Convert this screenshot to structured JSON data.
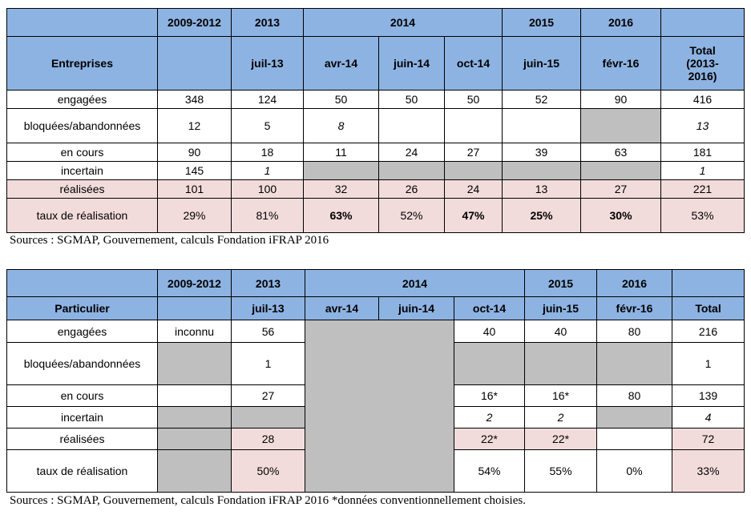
{
  "table1": {
    "header_years": [
      "2009-2012",
      "2013",
      "2014",
      "2015",
      "2016"
    ],
    "header_months": [
      "Entreprises",
      "juil-13",
      "avr-14",
      "juin-14",
      "oct-14",
      "juin-15",
      "févr-16",
      "Total (2013-2016)"
    ],
    "rows": [
      [
        "engagées",
        348,
        124,
        50,
        50,
        50,
        52,
        90,
        416
      ],
      [
        "bloquées/abandonnées",
        12,
        5,
        8,
        13
      ],
      [
        "en cours",
        90,
        18,
        11,
        24,
        27,
        39,
        63,
        181
      ],
      [
        "incertain",
        145,
        1,
        1
      ],
      [
        "réalisées",
        101,
        100,
        32,
        26,
        24,
        13,
        27,
        221
      ],
      [
        "taux de réalisation",
        "29%",
        "81%",
        "63%",
        "52%",
        "47%",
        "25%",
        "30%",
        "53%"
      ]
    ],
    "source": "Sources : SGMAP, Gouvernement, calculs Fondation iFRAP 2016"
  },
  "table2": {
    "header_years": [
      "2009-2012",
      "2013",
      "2014",
      "2015",
      "2016"
    ],
    "header_months": [
      "Particulier",
      "juil-13",
      "avr-14",
      "juin-14",
      "oct-14",
      "juin-15",
      "févr-16",
      "Total"
    ],
    "rows": [
      [
        "engagées",
        "inconnu",
        56,
        40,
        40,
        80,
        216
      ],
      [
        "bloquées/abandonnées",
        1,
        1
      ],
      [
        "en cours",
        27,
        "16*",
        "16*",
        80,
        139
      ],
      [
        "incertain",
        2,
        2,
        4
      ],
      [
        "réalisées",
        28,
        "22*",
        "22*",
        72
      ],
      [
        "taux de réalisation",
        "50%",
        "54%",
        "55%",
        "0%",
        "33%"
      ]
    ],
    "source": "Sources : SGMAP, Gouvernement, calculs Fondation iFRAP 2016 *données conventionnellement choisies."
  }
}
